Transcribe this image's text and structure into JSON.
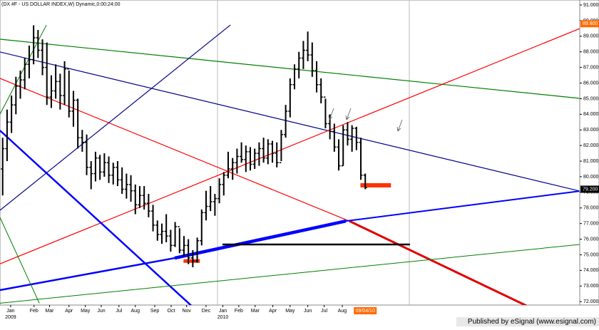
{
  "chart_data": {
    "type": "ohlc",
    "title": "(DX #F - US DOLLAR INDEX,W) Dynamic,0:00:24:00",
    "footer": "Published by eSignal (www.esignal.com)",
    "x": [
      0,
      1,
      2,
      3,
      4,
      5,
      6,
      7,
      8,
      9,
      10,
      11,
      12,
      13,
      14,
      15,
      16,
      17,
      18,
      19,
      20,
      21,
      22,
      23,
      24,
      25,
      26,
      27,
      28,
      29,
      30,
      31,
      32,
      33,
      34,
      35,
      36,
      37,
      38,
      39,
      40,
      41,
      42,
      43,
      44,
      45,
      46,
      47,
      48,
      49,
      50,
      51,
      52,
      53,
      54,
      55,
      56,
      57,
      58,
      59,
      60,
      61,
      62,
      63,
      64,
      65,
      66,
      67,
      68,
      69,
      70,
      71,
      72,
      73,
      74,
      75,
      76,
      77,
      78,
      79,
      80,
      81,
      82
    ],
    "open": [
      80.5,
      81.8,
      83.5,
      84.6,
      85.8,
      86.2,
      87.2,
      87.5,
      88.9,
      88.1,
      87.0,
      85.1,
      85.5,
      86.1,
      85.2,
      86.9,
      84.2,
      84.9,
      82.5,
      82.2,
      80.6,
      80.2,
      81.2,
      80.3,
      80.9,
      80.1,
      80.6,
      79.8,
      79.2,
      79.5,
      79.1,
      78.2,
      78.8,
      78.3,
      77.8,
      76.9,
      76.3,
      76.5,
      76.2,
      75.6,
      76.8,
      75.3,
      75.6,
      74.8,
      74.6,
      75.9,
      77.7,
      78.1,
      78.4,
      78.6,
      79.5,
      80.1,
      80.5,
      80.9,
      81.3,
      81.1,
      81.6,
      80.8,
      81.5,
      81.8,
      81.2,
      82.1,
      81.5,
      80.9,
      82.7,
      84.2,
      85.9,
      86.9,
      87.6,
      88.1,
      87.8,
      86.8,
      85.9,
      85.1,
      83.4,
      82.9,
      81.9,
      80.7,
      83.0,
      82.4,
      83.1,
      82.2,
      80.1
    ],
    "high": [
      82.5,
      84.3,
      85.2,
      86.4,
      86.8,
      87.6,
      88.4,
      89.7,
      89.4,
      88.8,
      88.6,
      86.5,
      87.2,
      86.6,
      87.4,
      86.8,
      85.5,
      85.0,
      83.0,
      82.7,
      81.0,
      81.6,
      81.4,
      81.5,
      81.3,
      80.9,
      81.0,
      80.6,
      80.2,
      80.1,
      79.5,
      79.4,
      79.4,
      78.9,
      78.2,
      77.2,
      77.0,
      77.6,
      76.6,
      77.1,
      76.7,
      76.2,
      76.0,
      75.3,
      76.1,
      77.9,
      79.1,
      79.4,
      78.9,
      79.9,
      80.3,
      81.6,
      81.2,
      81.8,
      82.2,
      82.0,
      81.9,
      81.8,
      82.2,
      82.5,
      82.4,
      82.3,
      82.2,
      83.0,
      84.6,
      86.3,
      87.2,
      88.0,
      88.7,
      89.3,
      88.6,
      87.4,
      86.3,
      85.0,
      84.0,
      83.4,
      82.4,
      83.3,
      83.5,
      83.3,
      83.2,
      82.5,
      80.2
    ],
    "low": [
      78.8,
      81.0,
      82.8,
      84.0,
      85.0,
      85.6,
      86.3,
      87.2,
      87.6,
      86.5,
      84.6,
      84.4,
      85.0,
      84.3,
      84.6,
      83.8,
      83.2,
      81.8,
      81.6,
      80.1,
      79.2,
      79.7,
      79.8,
      80.0,
      79.6,
      79.5,
      79.4,
      78.9,
      78.6,
      78.4,
      77.6,
      78.0,
      77.9,
      77.4,
      76.5,
      75.9,
      75.7,
      75.8,
      75.2,
      75.5,
      75.1,
      74.9,
      74.4,
      74.2,
      74.5,
      75.6,
      77.2,
      77.8,
      77.5,
      78.3,
      78.8,
      79.9,
      79.8,
      80.2,
      80.9,
      80.3,
      80.4,
      80.5,
      80.7,
      80.9,
      80.8,
      80.9,
      80.6,
      81.0,
      82.5,
      83.8,
      85.6,
      86.3,
      86.9,
      87.4,
      86.4,
      85.4,
      84.7,
      83.1,
      82.4,
      81.6,
      80.4,
      80.7,
      82.0,
      81.6,
      81.7,
      79.8,
      79.2
    ],
    "close": [
      81.8,
      83.5,
      84.6,
      85.8,
      86.2,
      87.2,
      87.5,
      88.9,
      88.1,
      87.0,
      85.1,
      85.5,
      86.1,
      85.2,
      86.9,
      84.2,
      84.9,
      82.5,
      82.2,
      80.6,
      80.2,
      81.2,
      80.3,
      80.9,
      80.1,
      80.6,
      79.8,
      79.2,
      79.5,
      79.1,
      78.2,
      78.8,
      78.3,
      77.8,
      76.9,
      76.3,
      76.5,
      76.2,
      75.6,
      76.8,
      75.3,
      75.6,
      74.8,
      74.6,
      75.9,
      77.7,
      78.1,
      78.4,
      78.6,
      79.5,
      80.1,
      80.5,
      80.9,
      81.3,
      81.1,
      81.6,
      80.8,
      81.5,
      81.8,
      81.2,
      82.1,
      81.5,
      80.9,
      82.7,
      84.2,
      85.9,
      86.9,
      87.6,
      88.1,
      87.8,
      86.8,
      85.9,
      85.1,
      83.4,
      82.9,
      81.9,
      80.7,
      83.0,
      82.4,
      83.1,
      82.2,
      80.1,
      79.3
    ],
    "color": "#000000",
    "xlim": [
      -0.6,
      130.5
    ],
    "xticks": [
      {
        "value": 1.8,
        "label": "Jan"
      },
      {
        "value": 7.1,
        "label": "Feb"
      },
      {
        "value": 10.6,
        "label": "Mar"
      },
      {
        "value": 15,
        "label": "Apr"
      },
      {
        "value": 18.7,
        "label": "May"
      },
      {
        "value": 22.3,
        "label": "Jun"
      },
      {
        "value": 26.3,
        "label": "Jul"
      },
      {
        "value": 30,
        "label": "Aug"
      },
      {
        "value": 34.4,
        "label": "Sep"
      },
      {
        "value": 38.1,
        "label": "Oct"
      },
      {
        "value": 41.6,
        "label": "Nov"
      },
      {
        "value": 46,
        "label": "Dec"
      },
      {
        "value": 49.8,
        "label": "Jan"
      },
      {
        "value": 53.4,
        "label": "Feb"
      },
      {
        "value": 57.1,
        "label": "Mar"
      },
      {
        "value": 61.1,
        "label": "Apr"
      },
      {
        "value": 65,
        "label": "May"
      },
      {
        "value": 69,
        "label": "Jun"
      },
      {
        "value": 72.7,
        "label": "Jul"
      },
      {
        "value": 76.8,
        "label": "Aug"
      }
    ],
    "year_ticks": [
      {
        "value": 1.8,
        "label": "2009"
      },
      {
        "value": 49.8,
        "label": "2010"
      }
    ],
    "date_marker": {
      "value": 82,
      "label": "09/04/10"
    },
    "ylim": [
      71.78,
      91.32
    ],
    "yticks": [
      {
        "value": 91,
        "label": "91.000"
      },
      {
        "value": 90,
        "label": "90.000"
      },
      {
        "value": 89,
        "label": "89.000"
      },
      {
        "value": 88,
        "label": "88.000"
      },
      {
        "value": 87,
        "label": "87.000"
      },
      {
        "value": 86,
        "label": "86.000"
      },
      {
        "value": 85,
        "label": "85.000"
      },
      {
        "value": 84,
        "label": "84.000"
      },
      {
        "value": 83,
        "label": "83.000"
      },
      {
        "value": 82,
        "label": "82.000"
      },
      {
        "value": 81,
        "label": "81.000"
      },
      {
        "value": 80,
        "label": "80.000"
      },
      {
        "value": 79,
        "label": "79.000"
      },
      {
        "value": 78,
        "label": "78.000"
      },
      {
        "value": 77,
        "label": "77.000"
      },
      {
        "value": 76,
        "label": "76.000"
      },
      {
        "value": 75,
        "label": "75.000"
      },
      {
        "value": 74,
        "label": "74.000"
      },
      {
        "value": 73,
        "label": "73.000"
      },
      {
        "value": 72,
        "label": "72.000"
      }
    ],
    "price_markers": [
      {
        "value": 89.8,
        "label": "89.800",
        "color": "#ff6a00"
      },
      {
        "value": 79.2,
        "label": "79.200",
        "color": "#000000"
      }
    ],
    "trendlines": [
      {
        "color": "#008000",
        "width": 1.2,
        "points": [
          [
            -0.6,
            88.81
          ],
          [
            130.5,
            85.02
          ]
        ]
      },
      {
        "color": "#00008b",
        "width": 1.2,
        "points": [
          [
            -0.6,
            87.99
          ],
          [
            130.5,
            79.08
          ]
        ]
      },
      {
        "color": "#ff0000",
        "width": 1.2,
        "points": [
          [
            -0.6,
            74.42
          ],
          [
            130.5,
            89.49
          ]
        ]
      },
      {
        "color": "#ff0000",
        "width": 1.2,
        "points": [
          [
            -0.6,
            86.3
          ],
          [
            78.4,
            77.16
          ]
        ]
      },
      {
        "color": "#e00000",
        "width": 3,
        "points": [
          [
            78.4,
            77.16
          ],
          [
            127.3,
            70.54
          ]
        ]
      },
      {
        "color": "#00008b",
        "width": 1.2,
        "points": [
          [
            -0.6,
            77.85
          ],
          [
            51.5,
            89.72
          ]
        ]
      },
      {
        "color": "#0000ff",
        "width": 2.5,
        "points": [
          [
            -0.6,
            82.96
          ],
          [
            47.8,
            70.41
          ]
        ]
      },
      {
        "color": "#0000ff",
        "width": 2.5,
        "points": [
          [
            -0.6,
            72.74
          ],
          [
            38.9,
            74.79
          ]
        ]
      },
      {
        "color": "#0000ff",
        "width": 4.5,
        "points": [
          [
            38.9,
            74.79
          ],
          [
            77.6,
            77.16
          ]
        ]
      },
      {
        "color": "#0000ff",
        "width": 2,
        "points": [
          [
            77.6,
            77.16
          ],
          [
            130.5,
            79.08
          ]
        ]
      },
      {
        "color": "#000000",
        "width": 2.5,
        "points": [
          [
            49.7,
            75.66
          ],
          [
            92.1,
            75.66
          ]
        ]
      },
      {
        "color": "#008000",
        "width": 1,
        "points": [
          [
            -0.6,
            71.9
          ],
          [
            130.5,
            75.66
          ]
        ]
      },
      {
        "color": "#008000",
        "width": 1,
        "points": [
          [
            -0.6,
            84.01
          ],
          [
            9.9,
            89.72
          ]
        ]
      },
      {
        "color": "#008000",
        "width": 1,
        "points": [
          [
            -0.6,
            77.39
          ],
          [
            8.3,
            71.9
          ]
        ]
      }
    ],
    "highlights": [
      {
        "color": "#ff3300",
        "width": 5,
        "points": [
          [
            40.9,
            74.6
          ],
          [
            44.6,
            74.6
          ]
        ]
      },
      {
        "color": "#ff3300",
        "width": 6,
        "points": [
          [
            80.9,
            79.45
          ],
          [
            87.8,
            79.45
          ]
        ]
      }
    ]
  }
}
